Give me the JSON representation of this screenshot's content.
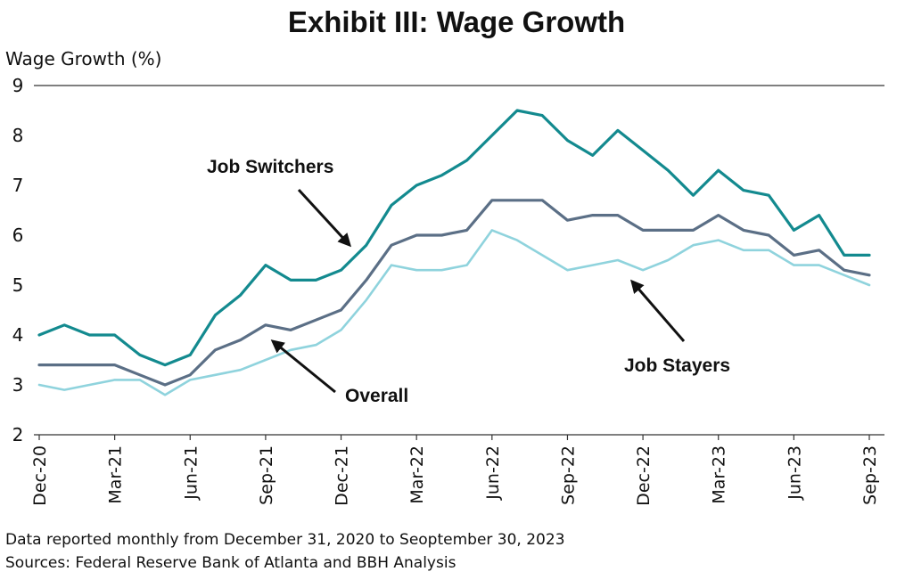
{
  "chart_data": {
    "type": "line",
    "title": "Exhibit III: Wage Growth",
    "ylabel": "Wage Growth (%)",
    "xlabel": "",
    "ylim": [
      2,
      9
    ],
    "yticks": [
      2,
      3,
      4,
      5,
      6,
      7,
      8,
      9
    ],
    "grid": false,
    "x": [
      "Dec-20",
      "Jan-21",
      "Feb-21",
      "Mar-21",
      "Apr-21",
      "May-21",
      "Jun-21",
      "Jul-21",
      "Aug-21",
      "Sep-21",
      "Oct-21",
      "Nov-21",
      "Dec-21",
      "Jan-22",
      "Feb-22",
      "Mar-22",
      "Apr-22",
      "May-22",
      "Jun-22",
      "Jul-22",
      "Aug-22",
      "Sep-22",
      "Oct-22",
      "Nov-22",
      "Dec-22",
      "Jan-23",
      "Feb-23",
      "Mar-23",
      "Apr-23",
      "May-23",
      "Jun-23",
      "Jul-23",
      "Aug-23",
      "Sep-23"
    ],
    "xtick_labels": [
      "Dec-20",
      "Mar-21",
      "Jun-21",
      "Sep-21",
      "Dec-21",
      "Mar-22",
      "Jun-22",
      "Sep-22",
      "Dec-22",
      "Mar-23",
      "Jun-23",
      "Sep-23"
    ],
    "series": [
      {
        "name": "Job Switchers",
        "color": "#138a8f",
        "values": [
          4.0,
          4.2,
          4.0,
          4.0,
          3.6,
          3.4,
          3.6,
          4.4,
          4.8,
          5.4,
          5.1,
          5.1,
          5.3,
          5.8,
          6.6,
          7.0,
          7.2,
          7.5,
          8.0,
          8.5,
          8.4,
          7.9,
          7.6,
          8.1,
          7.7,
          7.3,
          6.8,
          7.3,
          6.9,
          6.8,
          6.1,
          6.4,
          5.6,
          5.6
        ]
      },
      {
        "name": "Overall",
        "color": "#5b6f86",
        "values": [
          3.4,
          3.4,
          3.4,
          3.4,
          3.2,
          3.0,
          3.2,
          3.7,
          3.9,
          4.2,
          4.1,
          4.3,
          4.5,
          5.1,
          5.8,
          6.0,
          6.0,
          6.1,
          6.7,
          6.7,
          6.7,
          6.3,
          6.4,
          6.4,
          6.1,
          6.1,
          6.1,
          6.4,
          6.1,
          6.0,
          5.6,
          5.7,
          5.3,
          5.2
        ]
      },
      {
        "name": "Job Stayers",
        "color": "#8fd3dd",
        "values": [
          3.0,
          2.9,
          3.0,
          3.1,
          3.1,
          2.8,
          3.1,
          3.2,
          3.3,
          3.5,
          3.7,
          3.8,
          4.1,
          4.7,
          5.4,
          5.3,
          5.3,
          5.4,
          6.1,
          5.9,
          5.6,
          5.3,
          5.4,
          5.5,
          5.3,
          5.5,
          5.8,
          5.9,
          5.7,
          5.7,
          5.4,
          5.4,
          5.2,
          5.0
        ]
      }
    ],
    "annotations": [
      {
        "text": "Job Switchers",
        "series": "Job Switchers",
        "points_to": "Nov-21"
      },
      {
        "text": "Overall",
        "series": "Overall",
        "points_to": "Sep-21"
      },
      {
        "text": "Job Stayers",
        "series": "Job Stayers",
        "points_to": "Oct-22"
      }
    ],
    "footnotes": [
      "Data reported monthly from December 31, 2020 to Seoptember 30, 2023",
      "Sources: Federal Reserve Bank of Atlanta and BBH Analysis"
    ]
  }
}
